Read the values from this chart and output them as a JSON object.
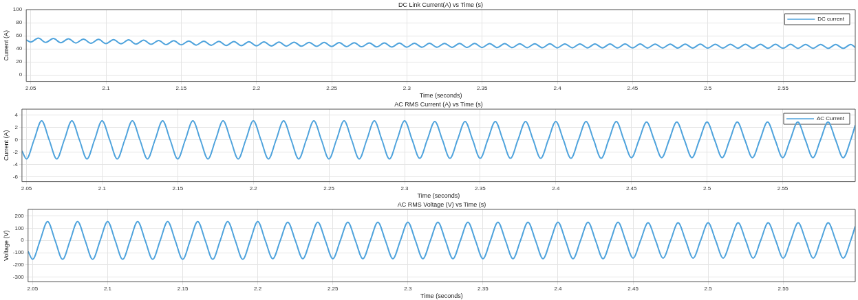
{
  "chart_data": [
    {
      "type": "line",
      "title": "DC Link Current(A) vs Time (s)",
      "xlabel": "Time (seconds)",
      "ylabel": "Current (A)",
      "xlim": [
        2.047,
        2.598
      ],
      "xticks": [
        2.05,
        2.1,
        2.15,
        2.2,
        2.25,
        2.3,
        2.35,
        2.4,
        2.45,
        2.5,
        2.55
      ],
      "ylim": [
        -10,
        100
      ],
      "yticks": [
        0,
        20,
        40,
        60,
        80,
        100
      ],
      "grid": true,
      "legend": "top right",
      "marker": "none",
      "line_style": "solid",
      "x": [
        2.047,
        2.05,
        2.055,
        2.06,
        2.065,
        2.07,
        2.075,
        2.08,
        2.085,
        2.09,
        2.095,
        2.1,
        2.105,
        2.11,
        2.115,
        2.12,
        2.125,
        2.13,
        2.135,
        2.14,
        2.145,
        2.15,
        2.155,
        2.16,
        2.165,
        2.17,
        2.175,
        2.18,
        2.185,
        2.19,
        2.195,
        2.2,
        2.205,
        2.21,
        2.215,
        2.22,
        2.225,
        2.23,
        2.235,
        2.24,
        2.245,
        2.25,
        2.255,
        2.26,
        2.265,
        2.27,
        2.275,
        2.28,
        2.285,
        2.29,
        2.295,
        2.3,
        2.305,
        2.31,
        2.315,
        2.32,
        2.325,
        2.33,
        2.335,
        2.34,
        2.345,
        2.35,
        2.355,
        2.36,
        2.365,
        2.37,
        2.375,
        2.38,
        2.385,
        2.39,
        2.395,
        2.4,
        2.405,
        2.41,
        2.415,
        2.42,
        2.425,
        2.43,
        2.435,
        2.44,
        2.445,
        2.45,
        2.455,
        2.46,
        2.465,
        2.47,
        2.475,
        2.48,
        2.485,
        2.49,
        2.495,
        2.5,
        2.505,
        2.51,
        2.515,
        2.52,
        2.525,
        2.53,
        2.535,
        2.54,
        2.545,
        2.55,
        2.555,
        2.56,
        2.565,
        2.57,
        2.575,
        2.58,
        2.585,
        2.59,
        2.595,
        2.598
      ],
      "series": [
        {
          "name": "DC current",
          "color": "#4fa3dc",
          "values": [
            53.5,
            50.3,
            56.3,
            49.8,
            55.8,
            49.3,
            55.3,
            48.8,
            54.8,
            48.4,
            54.4,
            48,
            54,
            47.6,
            53.6,
            47.2,
            53.2,
            46.8,
            52.8,
            46.4,
            52.4,
            46,
            52,
            45.7,
            51.7,
            45.4,
            51.4,
            45.1,
            51.1,
            44.8,
            50.8,
            44.5,
            50.5,
            44.3,
            50.3,
            44.1,
            50.1,
            43.9,
            49.9,
            43.7,
            49.7,
            43.5,
            49.5,
            43.3,
            49.3,
            43.1,
            49.1,
            42.9,
            48.9,
            42.7,
            48.7,
            42.5,
            48.5,
            42.4,
            48.4,
            42.3,
            48.3,
            42.2,
            48.2,
            42.1,
            48.1,
            42,
            48,
            41.9,
            47.9,
            41.8,
            47.8,
            41.7,
            47.7,
            41.6,
            47.6,
            41.5,
            47.5,
            41.5,
            47.5,
            41.4,
            47.4,
            41.4,
            47.4,
            41.3,
            47.3,
            41.3,
            47.3,
            41.2,
            47.2,
            41.2,
            47.2,
            41.1,
            47.1,
            41.1,
            47.1,
            41,
            47,
            41,
            47,
            40.9,
            46.9,
            40.9,
            46.9,
            40.8,
            46.8,
            40.8,
            46.8,
            40.7,
            46.7,
            40.7,
            46.7,
            40.6,
            46.6,
            40.6,
            46.6,
            42
          ]
        }
      ]
    },
    {
      "type": "line",
      "title": "AC RMS Current (A) vs Time (s)",
      "xlabel": "Time (seconds)",
      "ylabel": "Current (A)",
      "xlim": [
        2.047,
        2.598
      ],
      "xticks": [
        2.05,
        2.1,
        2.15,
        2.2,
        2.25,
        2.3,
        2.35,
        2.4,
        2.45,
        2.5,
        2.55
      ],
      "ylim": [
        -6.8,
        5
      ],
      "yticks": [
        -6,
        -4,
        -2,
        0,
        2,
        4
      ],
      "grid": true,
      "legend": "top right",
      "marker": "none",
      "line_style": "solid",
      "x": [
        2.047,
        2.05,
        2.055,
        2.06,
        2.065,
        2.07,
        2.075,
        2.08,
        2.085,
        2.09,
        2.095,
        2.1,
        2.105,
        2.11,
        2.115,
        2.12,
        2.125,
        2.13,
        2.135,
        2.14,
        2.145,
        2.15,
        2.155,
        2.16,
        2.165,
        2.17,
        2.175,
        2.18,
        2.185,
        2.19,
        2.195,
        2.2,
        2.205,
        2.21,
        2.215,
        2.22,
        2.225,
        2.23,
        2.235,
        2.24,
        2.245,
        2.25,
        2.255,
        2.26,
        2.265,
        2.27,
        2.275,
        2.28,
        2.285,
        2.29,
        2.295,
        2.3,
        2.305,
        2.31,
        2.315,
        2.32,
        2.325,
        2.33,
        2.335,
        2.34,
        2.345,
        2.35,
        2.355,
        2.36,
        2.365,
        2.37,
        2.375,
        2.38,
        2.385,
        2.39,
        2.395,
        2.4,
        2.405,
        2.41,
        2.415,
        2.42,
        2.425,
        2.43,
        2.435,
        2.44,
        2.445,
        2.45,
        2.455,
        2.46,
        2.465,
        2.47,
        2.475,
        2.48,
        2.485,
        2.49,
        2.495,
        2.5,
        2.505,
        2.51,
        2.515,
        2.52,
        2.525,
        2.53,
        2.535,
        2.54,
        2.545,
        2.55,
        2.555,
        2.56,
        2.565,
        2.57,
        2.575,
        2.58,
        2.585,
        2.59,
        2.595,
        2.598
      ],
      "series": [
        {
          "name": "AC Current",
          "color": "#4fa3dc",
          "values": [
            -1.8,
            -3.1,
            0,
            3.1,
            0,
            -3.1,
            0,
            3.1,
            0,
            -3.1,
            0,
            3.1,
            0,
            -3.1,
            0,
            3.1,
            0,
            -3.1,
            0,
            3.1,
            0,
            -3.1,
            0,
            3.1,
            0,
            -3.1,
            0,
            3.1,
            0,
            -3.1,
            0,
            3.1,
            0,
            -3.1,
            0,
            3.1,
            0,
            -3.1,
            0,
            3.1,
            0,
            -3.1,
            0,
            3.1,
            0,
            -3.1,
            0,
            3.1,
            0,
            -3.1,
            0,
            3.1,
            0,
            -3,
            0,
            3,
            0,
            -3,
            0,
            3,
            0,
            -3,
            0,
            3,
            0,
            -3,
            0,
            3,
            0,
            -3,
            0,
            3,
            0,
            -3,
            0,
            3,
            0,
            -3,
            0,
            3,
            0,
            -2.9,
            0,
            2.9,
            0,
            -2.9,
            0,
            2.9,
            0,
            -2.9,
            0,
            2.9,
            0,
            -2.9,
            0,
            2.9,
            0,
            -2.9,
            0,
            2.9,
            0,
            -2.9,
            0,
            2.9,
            0,
            -2.9,
            0,
            2.9,
            0,
            -2.9,
            0,
            2.4
          ]
        }
      ]
    },
    {
      "type": "line",
      "title": "AC RMS Voltage (V) vs Time (s)",
      "xlabel": "Time (seconds)",
      "ylabel": "Voltage (V)",
      "xlim": [
        2.047,
        2.598
      ],
      "xticks": [
        2.05,
        2.1,
        2.15,
        2.2,
        2.25,
        2.3,
        2.35,
        2.4,
        2.45,
        2.5,
        2.55
      ],
      "ylim": [
        -340,
        255
      ],
      "yticks": [
        -300,
        -200,
        -100,
        0,
        100,
        200
      ],
      "grid": true,
      "marker": "none",
      "line_style": "solid",
      "x": [
        2.047,
        2.05,
        2.055,
        2.06,
        2.065,
        2.07,
        2.075,
        2.08,
        2.085,
        2.09,
        2.095,
        2.1,
        2.105,
        2.11,
        2.115,
        2.12,
        2.125,
        2.13,
        2.135,
        2.14,
        2.145,
        2.15,
        2.155,
        2.16,
        2.165,
        2.17,
        2.175,
        2.18,
        2.185,
        2.19,
        2.195,
        2.2,
        2.205,
        2.21,
        2.215,
        2.22,
        2.225,
        2.23,
        2.235,
        2.24,
        2.245,
        2.25,
        2.255,
        2.26,
        2.265,
        2.27,
        2.275,
        2.28,
        2.285,
        2.29,
        2.295,
        2.3,
        2.305,
        2.31,
        2.315,
        2.32,
        2.325,
        2.33,
        2.335,
        2.34,
        2.345,
        2.35,
        2.355,
        2.36,
        2.365,
        2.37,
        2.375,
        2.38,
        2.385,
        2.39,
        2.395,
        2.4,
        2.405,
        2.41,
        2.415,
        2.42,
        2.425,
        2.43,
        2.435,
        2.44,
        2.445,
        2.45,
        2.455,
        2.46,
        2.465,
        2.47,
        2.475,
        2.48,
        2.485,
        2.49,
        2.495,
        2.5,
        2.505,
        2.51,
        2.515,
        2.52,
        2.525,
        2.53,
        2.535,
        2.54,
        2.545,
        2.55,
        2.555,
        2.56,
        2.565,
        2.57,
        2.575,
        2.58,
        2.585,
        2.59,
        2.595,
        2.598
      ],
      "series": [
        {
          "color": "#4fa3dc",
          "values": [
            -90,
            -155,
            0,
            155,
            0,
            -155,
            0,
            155,
            0,
            -155,
            0,
            155,
            0,
            -155,
            0,
            155,
            0,
            -155,
            0,
            155,
            0,
            -155,
            0,
            155,
            0,
            -155,
            0,
            155,
            0,
            -155,
            0,
            155,
            0,
            -150,
            0,
            150,
            0,
            -150,
            0,
            150,
            0,
            -150,
            0,
            150,
            0,
            -150,
            0,
            150,
            0,
            -150,
            0,
            150,
            0,
            -150,
            0,
            150,
            0,
            -150,
            0,
            150,
            0,
            -150,
            0,
            150,
            0,
            -150,
            0,
            150,
            0,
            -150,
            0,
            150,
            0,
            -150,
            0,
            150,
            0,
            -150,
            0,
            150,
            0,
            -145,
            0,
            145,
            0,
            -145,
            0,
            145,
            0,
            -145,
            0,
            145,
            0,
            -145,
            0,
            145,
            0,
            -145,
            0,
            145,
            0,
            -145,
            0,
            145,
            0,
            -145,
            0,
            145,
            0,
            -145,
            0,
            117
          ]
        }
      ]
    }
  ]
}
